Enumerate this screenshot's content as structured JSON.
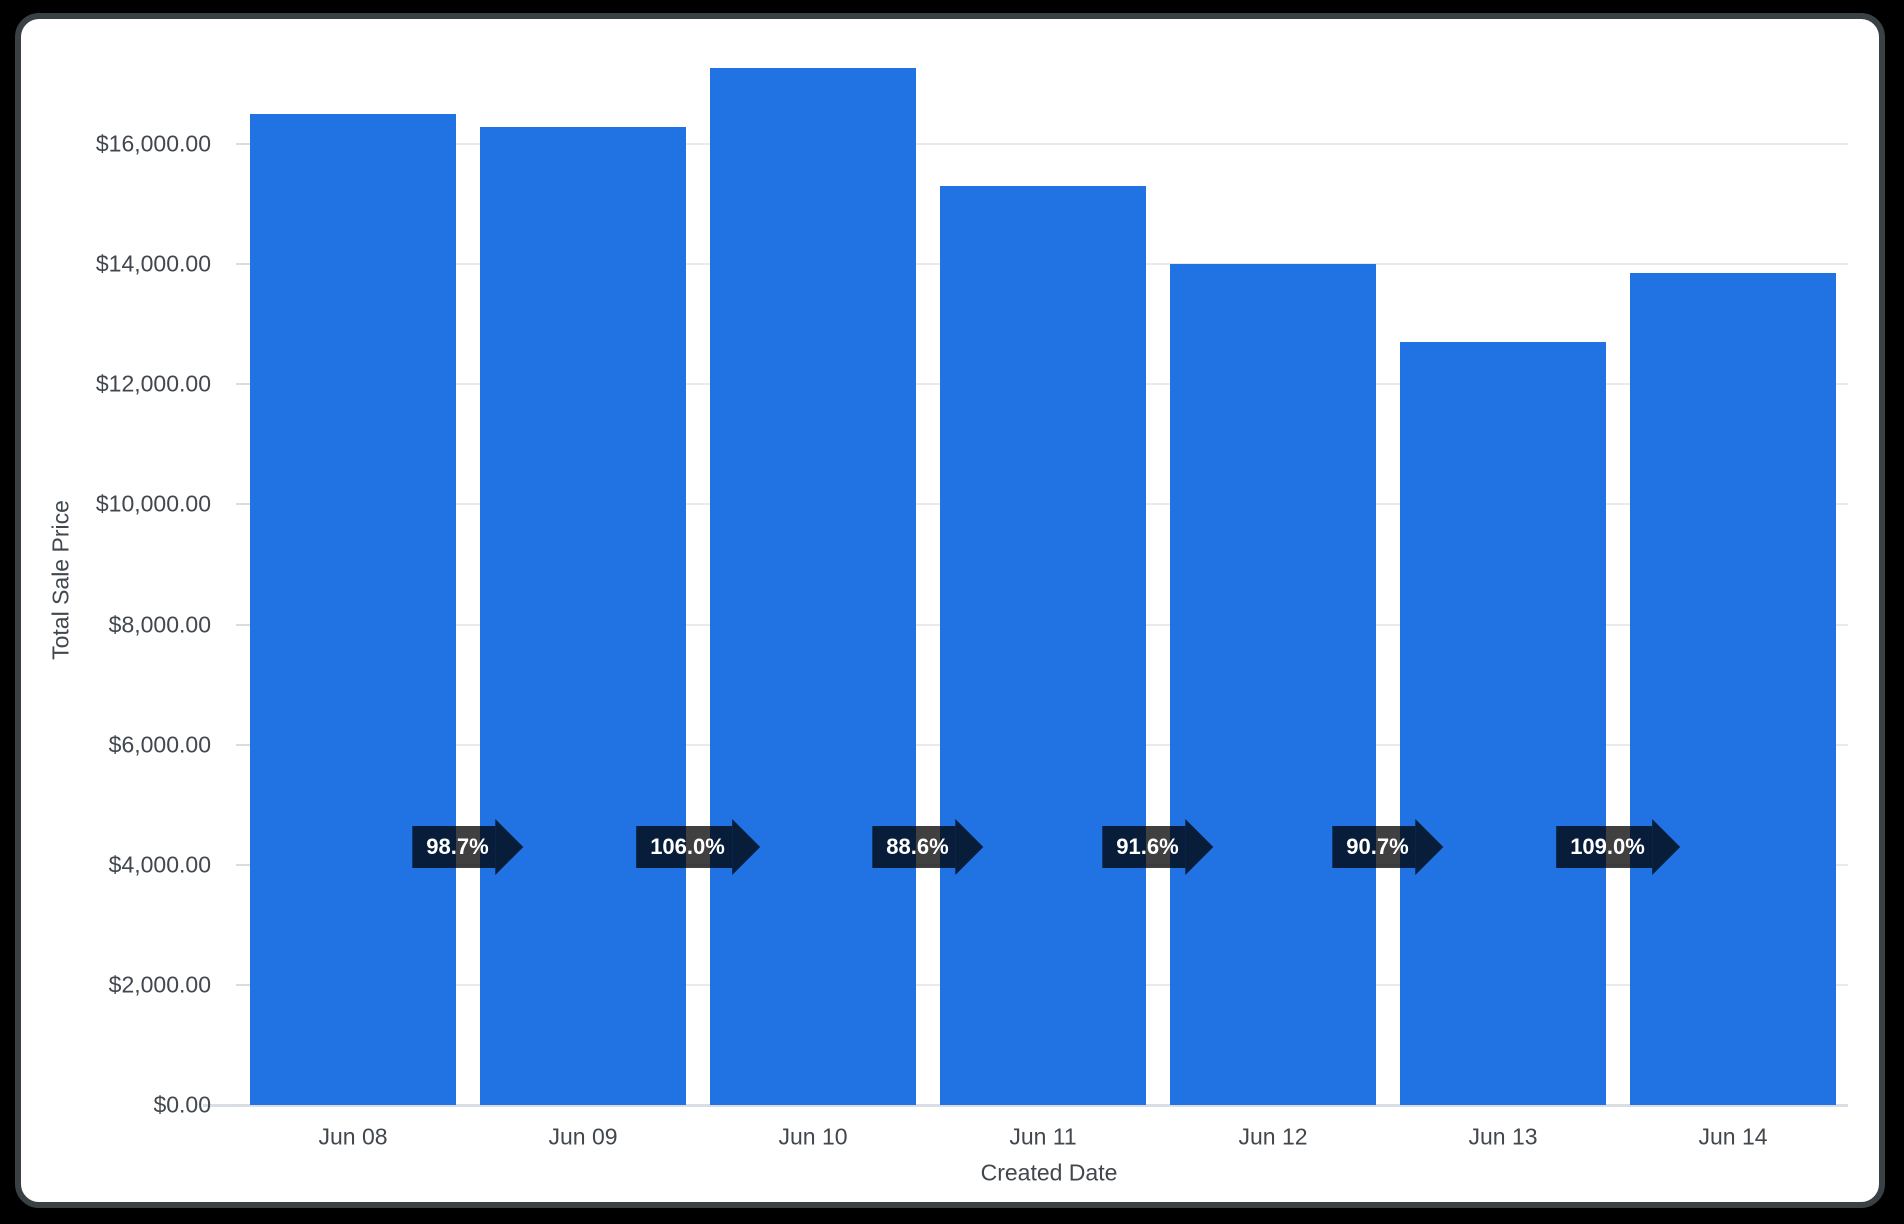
{
  "chart_data": {
    "type": "bar",
    "title": "",
    "xlabel": "Created Date",
    "ylabel": "Total Sale Price",
    "categories": [
      "Jun 08",
      "Jun 09",
      "Jun 10",
      "Jun 11",
      "Jun 12",
      "Jun 13",
      "Jun 14"
    ],
    "series": [
      {
        "name": "Total Sale Price",
        "values": [
          16500,
          16290,
          17270,
          15300,
          14010,
          12710,
          13850
        ]
      }
    ],
    "pct_change_labels": [
      "98.7%",
      "106.0%",
      "88.6%",
      "91.6%",
      "90.7%",
      "109.0%"
    ],
    "y_ticks": [
      {
        "value": 0,
        "label": "$0.00"
      },
      {
        "value": 2000,
        "label": "$2,000.00"
      },
      {
        "value": 4000,
        "label": "$4,000.00"
      },
      {
        "value": 6000,
        "label": "$6,000.00"
      },
      {
        "value": 8000,
        "label": "$8,000.00"
      },
      {
        "value": 10000,
        "label": "$10,000.00"
      },
      {
        "value": 12000,
        "label": "$12,000.00"
      },
      {
        "value": 14000,
        "label": "$14,000.00"
      },
      {
        "value": 16000,
        "label": "$16,000.00"
      }
    ],
    "ylim": [
      0,
      17900
    ],
    "grid": true,
    "legend": false,
    "colors": {
      "bar": "#2173e4",
      "badge_bg": "rgba(0,0,0,0.75)",
      "badge_text": "#ffffff",
      "grid_line": "#e9eaec",
      "axis_text": "#41474d"
    }
  }
}
